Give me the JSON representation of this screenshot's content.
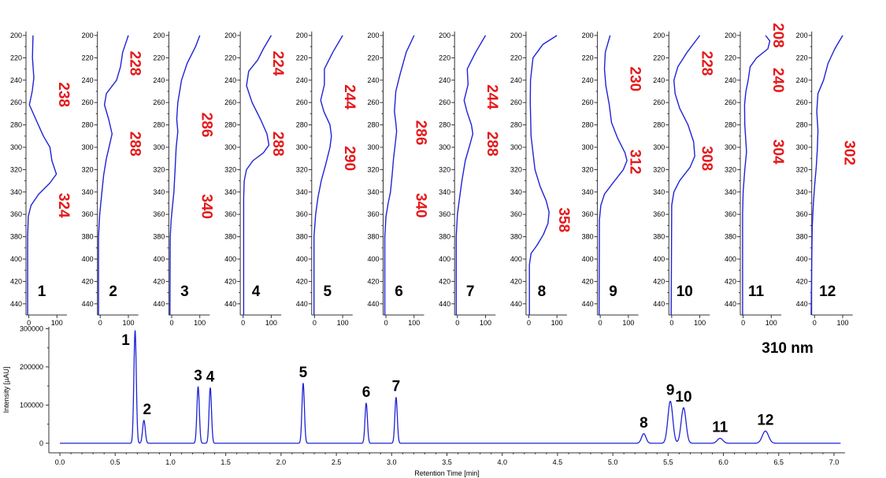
{
  "colors": {
    "trace": "#1f23d6",
    "wavelength_label": "#e41a1c",
    "axis": "#333333",
    "text": "#000000"
  },
  "chart_data": [
    {
      "type": "line",
      "description_of_layout": "twelve UV spectra panels, wavelength on vertical axis, absorbance percent on horizontal axis",
      "ylim": [
        200,
        450
      ],
      "y_ticks": [
        "200",
        "220",
        "240",
        "260",
        "280",
        "300",
        "320",
        "340",
        "360",
        "380",
        "400",
        "420",
        "440"
      ],
      "x_ticks": [
        "0",
        "100"
      ],
      "xlim": [
        -10,
        130
      ],
      "panels": [
        {
          "label": "1",
          "maxima": [
            {
              "wl": "238",
              "at": 253
            },
            {
              "wl": "324",
              "at": 352
            }
          ],
          "spectrum": [
            [
              200,
              15
            ],
            [
              220,
              13
            ],
            [
              238,
              18
            ],
            [
              250,
              12
            ],
            [
              262,
              2
            ],
            [
              275,
              25
            ],
            [
              290,
              52
            ],
            [
              300,
              75
            ],
            [
              312,
              82
            ],
            [
              324,
              98
            ],
            [
              332,
              75
            ],
            [
              342,
              35
            ],
            [
              352,
              8
            ],
            [
              362,
              -2
            ],
            [
              380,
              -4
            ],
            [
              450,
              -4
            ]
          ]
        },
        {
          "label": "2",
          "maxima": [
            {
              "wl": "228",
              "at": 225
            },
            {
              "wl": "288",
              "at": 297
            }
          ],
          "spectrum": [
            [
              200,
              100
            ],
            [
              215,
              80
            ],
            [
              228,
              72
            ],
            [
              240,
              58
            ],
            [
              252,
              22
            ],
            [
              262,
              15
            ],
            [
              275,
              30
            ],
            [
              288,
              42
            ],
            [
              298,
              33
            ],
            [
              310,
              22
            ],
            [
              325,
              12
            ],
            [
              340,
              6
            ],
            [
              360,
              -2
            ],
            [
              380,
              -6
            ],
            [
              450,
              -6
            ]
          ]
        },
        {
          "label": "3",
          "maxima": [
            {
              "wl": "286",
              "at": 280
            },
            {
              "wl": "340",
              "at": 353
            }
          ],
          "spectrum": [
            [
              200,
              100
            ],
            [
              210,
              85
            ],
            [
              225,
              55
            ],
            [
              240,
              35
            ],
            [
              260,
              22
            ],
            [
              275,
              18
            ],
            [
              286,
              22
            ],
            [
              300,
              16
            ],
            [
              320,
              12
            ],
            [
              340,
              8
            ],
            [
              350,
              4
            ],
            [
              365,
              -2
            ],
            [
              380,
              -5
            ],
            [
              450,
              -6
            ]
          ]
        },
        {
          "label": "4",
          "maxima": [
            {
              "wl": "224",
              "at": 225
            },
            {
              "wl": "288",
              "at": 297
            }
          ],
          "spectrum": [
            [
              200,
              100
            ],
            [
              212,
              72
            ],
            [
              222,
              52
            ],
            [
              232,
              20
            ],
            [
              245,
              12
            ],
            [
              260,
              32
            ],
            [
              275,
              62
            ],
            [
              288,
              85
            ],
            [
              298,
              92
            ],
            [
              305,
              72
            ],
            [
              312,
              35
            ],
            [
              320,
              12
            ],
            [
              330,
              4
            ],
            [
              345,
              2
            ],
            [
              450,
              2
            ]
          ]
        },
        {
          "label": "5",
          "maxima": [
            {
              "wl": "244",
              "at": 255
            },
            {
              "wl": "290",
              "at": 310
            }
          ],
          "spectrum": [
            [
              200,
              100
            ],
            [
              215,
              65
            ],
            [
              230,
              35
            ],
            [
              244,
              35
            ],
            [
              258,
              22
            ],
            [
              268,
              33
            ],
            [
              280,
              55
            ],
            [
              290,
              60
            ],
            [
              300,
              55
            ],
            [
              315,
              40
            ],
            [
              330,
              24
            ],
            [
              345,
              12
            ],
            [
              360,
              4
            ],
            [
              380,
              -2
            ],
            [
              450,
              -2
            ]
          ]
        },
        {
          "label": "6",
          "maxima": [
            {
              "wl": "286",
              "at": 287
            },
            {
              "wl": "340",
              "at": 352
            }
          ],
          "spectrum": [
            [
              200,
              100
            ],
            [
              215,
              72
            ],
            [
              235,
              50
            ],
            [
              250,
              35
            ],
            [
              268,
              30
            ],
            [
              278,
              35
            ],
            [
              286,
              38
            ],
            [
              295,
              34
            ],
            [
              310,
              27
            ],
            [
              325,
              22
            ],
            [
              340,
              16
            ],
            [
              350,
              8
            ],
            [
              362,
              0
            ],
            [
              380,
              -4
            ],
            [
              450,
              -4
            ]
          ]
        },
        {
          "label": "7",
          "maxima": [
            {
              "wl": "244",
              "at": 255
            },
            {
              "wl": "288",
              "at": 297
            }
          ],
          "spectrum": [
            [
              200,
              100
            ],
            [
              215,
              65
            ],
            [
              230,
              35
            ],
            [
              244,
              38
            ],
            [
              258,
              24
            ],
            [
              268,
              34
            ],
            [
              280,
              50
            ],
            [
              288,
              55
            ],
            [
              298,
              44
            ],
            [
              312,
              28
            ],
            [
              330,
              16
            ],
            [
              345,
              8
            ],
            [
              360,
              0
            ],
            [
              380,
              -4
            ],
            [
              450,
              -4
            ]
          ]
        },
        {
          "label": "8",
          "maxima": [
            {
              "wl": "358",
              "at": 365
            }
          ],
          "spectrum": [
            [
              200,
              100
            ],
            [
              208,
              50
            ],
            [
              220,
              15
            ],
            [
              240,
              6
            ],
            [
              260,
              5
            ],
            [
              290,
              8
            ],
            [
              320,
              22
            ],
            [
              335,
              40
            ],
            [
              348,
              62
            ],
            [
              358,
              72
            ],
            [
              368,
              68
            ],
            [
              378,
              52
            ],
            [
              388,
              28
            ],
            [
              395,
              8
            ],
            [
              405,
              2
            ],
            [
              450,
              2
            ]
          ]
        },
        {
          "label": "9",
          "maxima": [
            {
              "wl": "230",
              "at": 239
            },
            {
              "wl": "312",
              "at": 313
            }
          ],
          "spectrum": [
            [
              200,
              35
            ],
            [
              215,
              18
            ],
            [
              230,
              15
            ],
            [
              245,
              20
            ],
            [
              262,
              32
            ],
            [
              278,
              40
            ],
            [
              292,
              62
            ],
            [
              305,
              88
            ],
            [
              312,
              95
            ],
            [
              320,
              82
            ],
            [
              332,
              45
            ],
            [
              342,
              15
            ],
            [
              352,
              2
            ],
            [
              365,
              -3
            ],
            [
              450,
              -4
            ]
          ]
        },
        {
          "label": "10",
          "maxima": [
            {
              "wl": "228",
              "at": 225
            },
            {
              "wl": "308",
              "at": 310
            }
          ],
          "spectrum": [
            [
              200,
              100
            ],
            [
              215,
              55
            ],
            [
              228,
              22
            ],
            [
              240,
              8
            ],
            [
              252,
              12
            ],
            [
              265,
              28
            ],
            [
              280,
              58
            ],
            [
              295,
              78
            ],
            [
              308,
              82
            ],
            [
              318,
              65
            ],
            [
              330,
              28
            ],
            [
              340,
              8
            ],
            [
              352,
              0
            ],
            [
              450,
              -2
            ]
          ]
        },
        {
          "label": "11",
          "maxima": [
            {
              "wl": "208",
              "at": 200
            },
            {
              "wl": "240",
              "at": 240
            },
            {
              "wl": "304",
              "at": 304
            }
          ],
          "spectrum": [
            [
              200,
              80
            ],
            [
              205,
              95
            ],
            [
              212,
              88
            ],
            [
              220,
              48
            ],
            [
              228,
              25
            ],
            [
              240,
              18
            ],
            [
              250,
              10
            ],
            [
              262,
              5
            ],
            [
              280,
              6
            ],
            [
              304,
              12
            ],
            [
              320,
              6
            ],
            [
              340,
              0
            ],
            [
              360,
              -2
            ],
            [
              450,
              -2
            ]
          ]
        },
        {
          "label": "12",
          "maxima": [
            {
              "wl": "302",
              "at": 305
            }
          ],
          "spectrum": [
            [
              200,
              100
            ],
            [
              212,
              72
            ],
            [
              225,
              48
            ],
            [
              240,
              32
            ],
            [
              252,
              12
            ],
            [
              268,
              8
            ],
            [
              285,
              12
            ],
            [
              302,
              10
            ],
            [
              318,
              6
            ],
            [
              335,
              0
            ],
            [
              350,
              -4
            ],
            [
              370,
              -8
            ],
            [
              400,
              -10
            ],
            [
              450,
              -12
            ]
          ]
        }
      ]
    },
    {
      "type": "line",
      "xlabel": "Retention Time [min]",
      "ylabel": "Intensity [µAU]",
      "annotation": "310 nm",
      "xlim": [
        -0.1,
        7.1
      ],
      "ylim": [
        -25000,
        305000
      ],
      "x_ticks": [
        "0.0",
        "0.5",
        "1.0",
        "1.5",
        "2.0",
        "2.5",
        "3.0",
        "3.5",
        "4.0",
        "4.5",
        "5.0",
        "5.5",
        "6.0",
        "6.5",
        "7.0"
      ],
      "y_ticks": [
        "0",
        "100000",
        "200000",
        "300000"
      ],
      "peaks": [
        {
          "label": "1",
          "rt": 0.68,
          "height": 295000,
          "width": 0.011
        },
        {
          "label": "2",
          "rt": 0.76,
          "height": 60000,
          "width": 0.012
        },
        {
          "label": "3",
          "rt": 1.25,
          "height": 148000,
          "width": 0.011
        },
        {
          "label": "4",
          "rt": 1.36,
          "height": 145000,
          "width": 0.011
        },
        {
          "label": "5",
          "rt": 2.2,
          "height": 157000,
          "width": 0.011
        },
        {
          "label": "6",
          "rt": 2.77,
          "height": 105000,
          "width": 0.011
        },
        {
          "label": "7",
          "rt": 3.04,
          "height": 120000,
          "width": 0.011
        },
        {
          "label": "8",
          "rt": 5.28,
          "height": 25000,
          "width": 0.02
        },
        {
          "label": "9",
          "rt": 5.52,
          "height": 110000,
          "width": 0.022
        },
        {
          "label": "10",
          "rt": 5.64,
          "height": 93000,
          "width": 0.022
        },
        {
          "label": "11",
          "rt": 5.97,
          "height": 13000,
          "width": 0.025
        },
        {
          "label": "12",
          "rt": 6.38,
          "height": 32000,
          "width": 0.028
        }
      ]
    }
  ]
}
